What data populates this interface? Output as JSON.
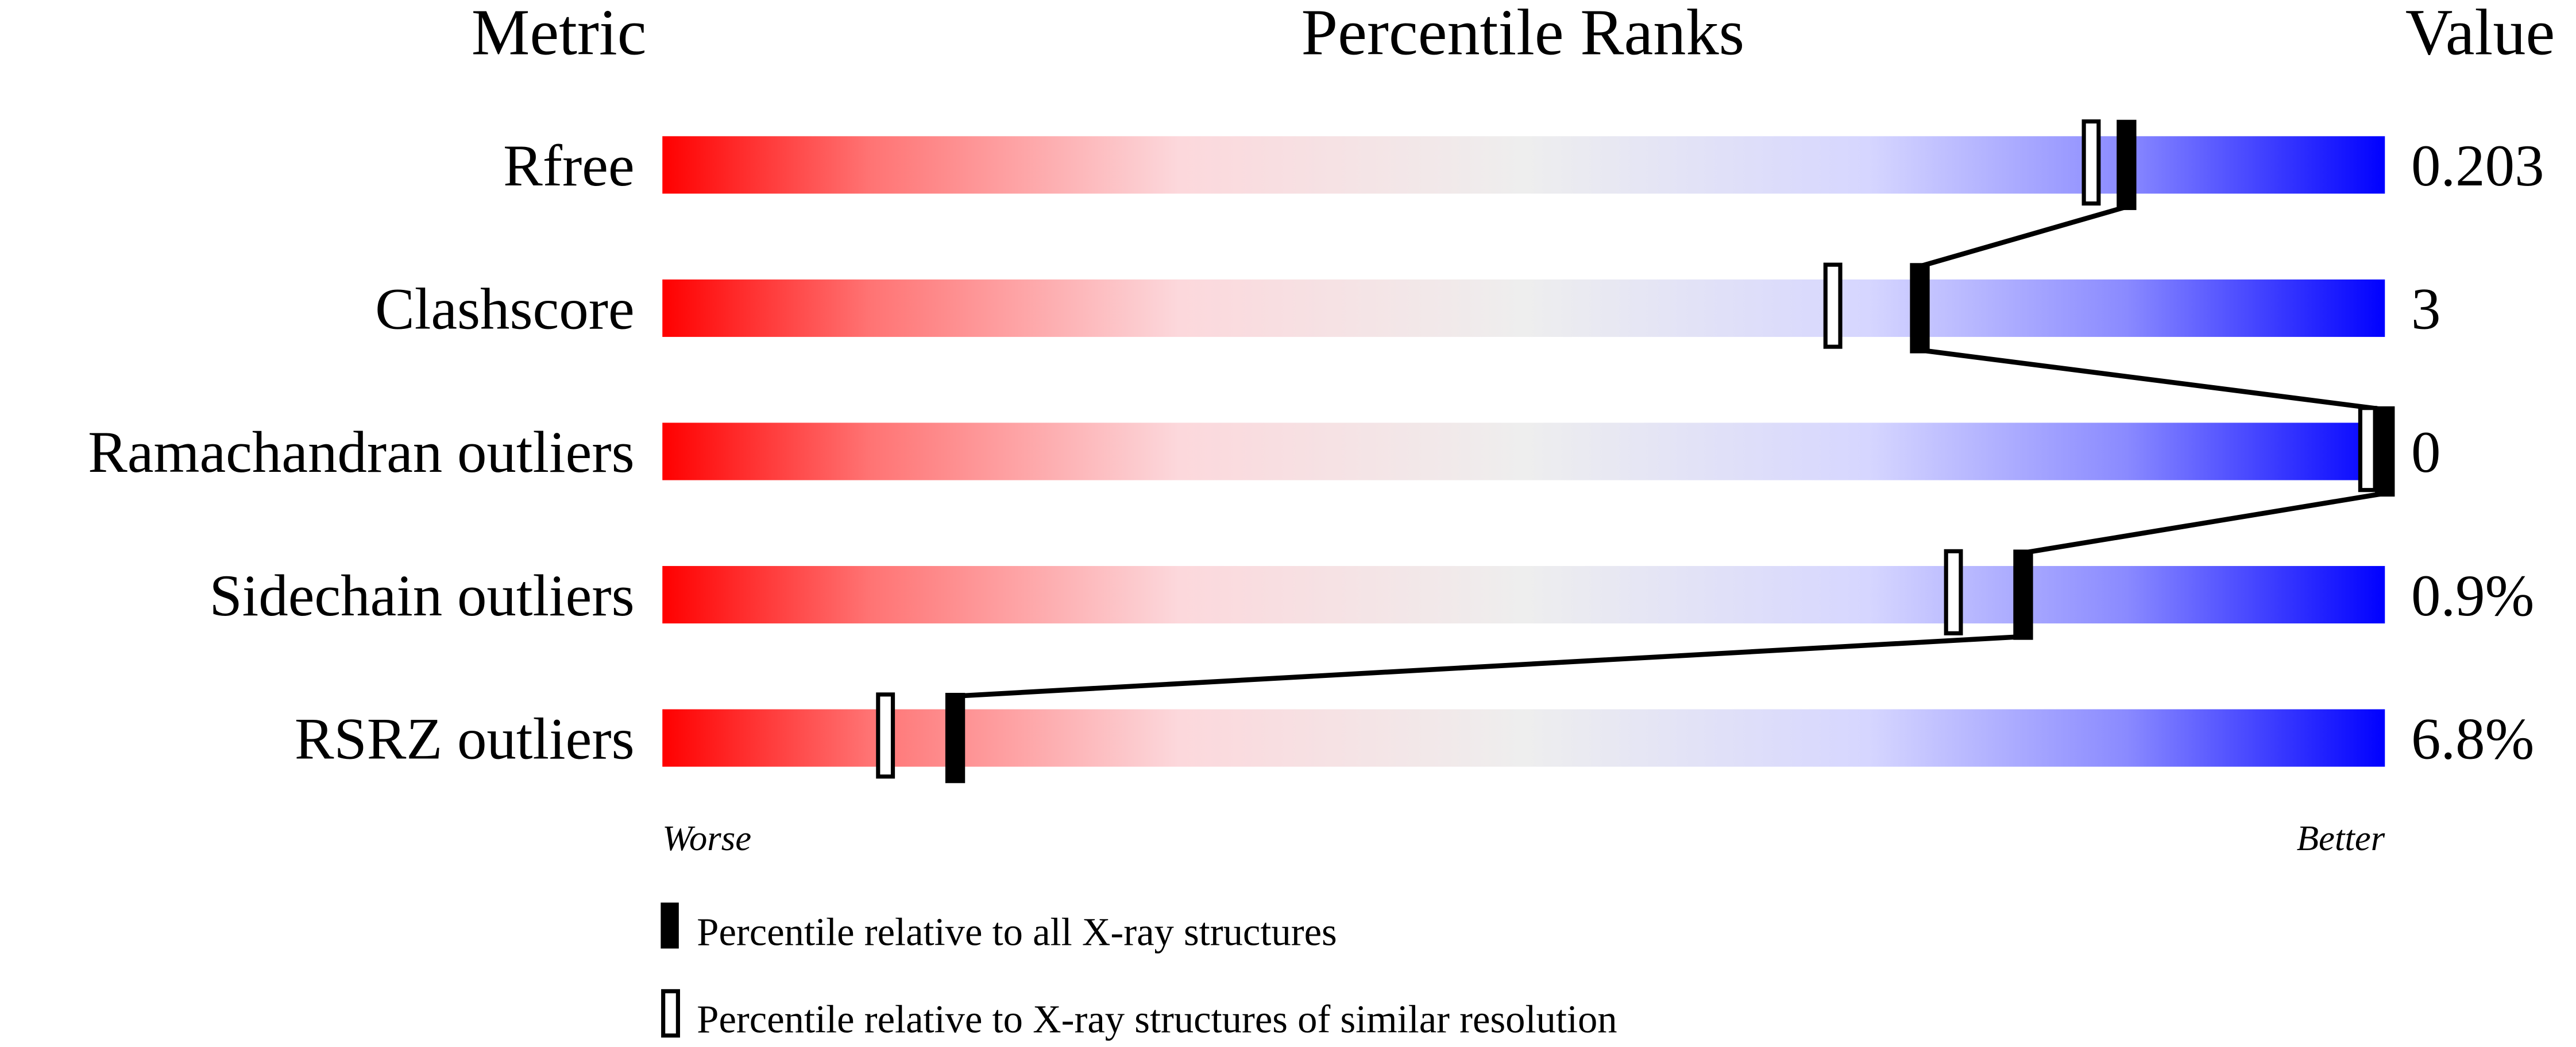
{
  "chart_data": {
    "type": "bar",
    "headers": {
      "metric": "Metric",
      "ranks": "Percentile Ranks",
      "value": "Value"
    },
    "xlim": [
      0,
      100
    ],
    "metrics": [
      {
        "name": "Rfree",
        "value": "0.203",
        "percentile_all": 85,
        "percentile_similar": 83
      },
      {
        "name": "Clashscore",
        "value": "3",
        "percentile_all": 73,
        "percentile_similar": 68
      },
      {
        "name": "Ramachandran outliers",
        "value": "0",
        "percentile_all": 100,
        "percentile_similar": 100
      },
      {
        "name": "Sidechain outliers",
        "value": "0.9%",
        "percentile_all": 79,
        "percentile_similar": 75
      },
      {
        "name": "RSRZ outliers",
        "value": "6.8%",
        "percentile_all": 17,
        "percentile_similar": 13
      }
    ],
    "axis_labels": {
      "left": "Worse",
      "right": "Better"
    },
    "legend": {
      "all": "Percentile relative to all X-ray structures",
      "similar": "Percentile relative to X-ray structures of similar resolution"
    },
    "gradient_colors": [
      "#ff0000",
      "#ff7373",
      "#fcd8dc",
      "#eeeeee",
      "#d6d6ff",
      "#7a7aff",
      "#0000ff"
    ]
  }
}
